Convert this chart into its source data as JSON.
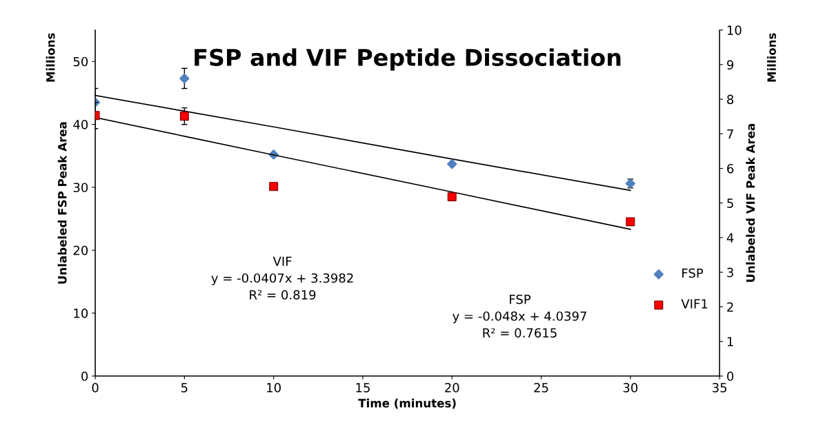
{
  "chart_data": {
    "type": "scatter",
    "title": "FSP and VIF Peptide Dissociation",
    "xlabel": "Time (minutes)",
    "ylabel": "Unlabeled FSP Peak Area",
    "y2label": "Unlabeled VIF Peak Area",
    "x": [
      0,
      5,
      10,
      20,
      30
    ],
    "series": [
      {
        "name": "FSP",
        "color": "#4f81bd",
        "marker": "diamond",
        "values": [
          43.5,
          47.3,
          35.2,
          33.7,
          30.6
        ],
        "errors": [
          2.2,
          1.6,
          0.3,
          null,
          0.7
        ]
      },
      {
        "name": "VIF1",
        "axis": "y2",
        "color": "#ff0000",
        "marker": "square",
        "values": [
          7.53,
          7.51,
          5.48,
          5.18,
          4.46
        ],
        "errors": [
          0.38,
          0.24,
          null,
          null,
          null
        ]
      },
      {
        "type": "line",
        "color": "#000000",
        "values": [
          44.6,
          42.1,
          39.6,
          34.5,
          29.5
        ]
      },
      {
        "type": "line",
        "axis": "y2",
        "color": "#000000",
        "values": [
          7.47,
          6.93,
          6.39,
          5.32,
          4.24
        ]
      }
    ],
    "xlim": [
      0,
      35
    ],
    "xticks": [
      0,
      5,
      10,
      15,
      20,
      25,
      30,
      35
    ],
    "ylim": [
      0,
      55
    ],
    "yticks": [
      0,
      10,
      20,
      30,
      40,
      50
    ],
    "y2lim": [
      0,
      10
    ],
    "y2ticks": [
      0,
      1,
      2,
      3,
      4,
      5,
      6,
      7,
      8,
      9,
      10
    ],
    "annotations": [
      "Millions",
      "Millions",
      "VIF\ny = -0.0407x + 3.3982\nR² = 0.819",
      "FSP\ny = -0.048x + 4.0397\nR² = 0.7615"
    ],
    "legend": "right",
    "grid": false
  }
}
